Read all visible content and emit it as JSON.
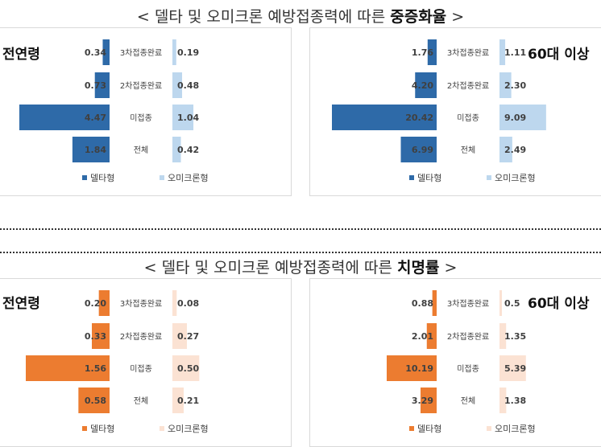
{
  "sections": [
    {
      "title_prefix": "< 델타 및 오미크론 예방접종력에 따른 ",
      "title_highlight": "중증화율",
      "title_suffix": " >"
    },
    {
      "title_prefix": "< 델타 및 오미크론 예방접종력에 따른 ",
      "title_highlight": "치명률",
      "title_suffix": " >"
    }
  ],
  "colors": {
    "delta_blue": "#2e6aa8",
    "omicron_blue": "#bdd7ee",
    "delta_orange": "#ec7c30",
    "omicron_orange": "#fbe2d3"
  },
  "chart_data": [
    {
      "type": "bar",
      "panel_label": "전연령",
      "categories": [
        "3차접종완료",
        "2차접종완료",
        "미접종",
        "전체"
      ],
      "series": [
        {
          "name": "델타형",
          "values": [
            0.34,
            0.73,
            4.47,
            1.84
          ]
        },
        {
          "name": "오미크론형",
          "values": [
            0.19,
            0.48,
            1.04,
            0.42
          ]
        }
      ]
    },
    {
      "type": "bar",
      "panel_label": "60대 이상",
      "categories": [
        "3차접종완료",
        "2차접종완료",
        "미접종",
        "전체"
      ],
      "series": [
        {
          "name": "델타형",
          "values": [
            1.76,
            4.2,
            20.42,
            6.99
          ]
        },
        {
          "name": "오미크론형",
          "values": [
            1.11,
            2.3,
            9.09,
            2.49
          ]
        }
      ]
    },
    {
      "type": "bar",
      "panel_label": "전연령",
      "categories": [
        "3차접종완료",
        "2차접종완료",
        "미접종",
        "전체"
      ],
      "series": [
        {
          "name": "델타형",
          "values": [
            0.2,
            0.33,
            1.56,
            0.58
          ]
        },
        {
          "name": "오미크론형",
          "values": [
            0.08,
            0.27,
            0.5,
            0.21
          ]
        }
      ]
    },
    {
      "type": "bar",
      "panel_label": "60대 이상",
      "categories": [
        "3차접종완료",
        "2차접종완료",
        "미접종",
        "전체"
      ],
      "series": [
        {
          "name": "델타형",
          "values": [
            0.88,
            2.01,
            10.19,
            3.29
          ]
        },
        {
          "name": "오미크론형",
          "values": [
            0.5,
            1.35,
            5.39,
            1.38
          ]
        }
      ]
    }
  ]
}
